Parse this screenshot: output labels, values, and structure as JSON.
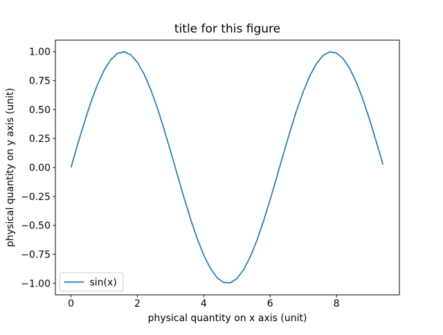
{
  "figure": {
    "background": "#ffffff",
    "spine_color": "#000000"
  },
  "chart_data": {
    "type": "line",
    "title": "title for this figure",
    "xlabel": "physical quantity on x axis (unit)",
    "ylabel": "physical quantity on y axis (unit)",
    "xlim": [
      -0.471,
      9.896
    ],
    "ylim": [
      -1.1,
      1.1
    ],
    "grid": false,
    "xticks": {
      "values": [
        0,
        2,
        4,
        6,
        8
      ],
      "labels": [
        "0",
        "2",
        "4",
        "6",
        "8"
      ]
    },
    "yticks": {
      "values": [
        -1.0,
        -0.75,
        -0.5,
        -0.25,
        0.0,
        0.25,
        0.5,
        0.75,
        1.0
      ],
      "labels": [
        "−1.00",
        "−0.75",
        "−0.50",
        "−0.25",
        "0.00",
        "0.25",
        "0.50",
        "0.75",
        "1.00"
      ]
    },
    "legend": {
      "position": "lower left",
      "entries": [
        {
          "label": "sin(x)",
          "color": "#1f77b4"
        }
      ]
    },
    "series": [
      {
        "name": "sin(x)",
        "color": "#1f77b4",
        "x": [
          0.0,
          0.2,
          0.4,
          0.6,
          0.8,
          1.0,
          1.2,
          1.4,
          1.6,
          1.8,
          2.0,
          2.2,
          2.4,
          2.6,
          2.8,
          3.0,
          3.2,
          3.4,
          3.6,
          3.8,
          4.0,
          4.2,
          4.4,
          4.6,
          4.8,
          5.0,
          5.2,
          5.4,
          5.6,
          5.8,
          6.0,
          6.2,
          6.4,
          6.6,
          6.8,
          7.0,
          7.2,
          7.4,
          7.6,
          7.8,
          8.0,
          8.2,
          8.4,
          8.6,
          8.8,
          9.0,
          9.2,
          9.4
        ],
        "y": [
          0.0,
          0.1987,
          0.3894,
          0.5646,
          0.7174,
          0.8415,
          0.932,
          0.9854,
          0.9996,
          0.9738,
          0.9093,
          0.8085,
          0.6755,
          0.5155,
          0.335,
          0.1411,
          -0.0584,
          -0.2555,
          -0.4425,
          -0.6119,
          -0.7568,
          -0.8716,
          -0.9516,
          -0.9937,
          -0.9962,
          -0.9589,
          -0.8835,
          -0.7728,
          -0.6313,
          -0.4646,
          -0.2794,
          -0.0831,
          0.1165,
          0.3115,
          0.4941,
          0.657,
          0.7937,
          0.8987,
          0.9679,
          0.9985,
          0.9894,
          0.9407,
          0.8546,
          0.7344,
          0.5849,
          0.4121,
          0.2229,
          0.0248
        ]
      }
    ]
  }
}
